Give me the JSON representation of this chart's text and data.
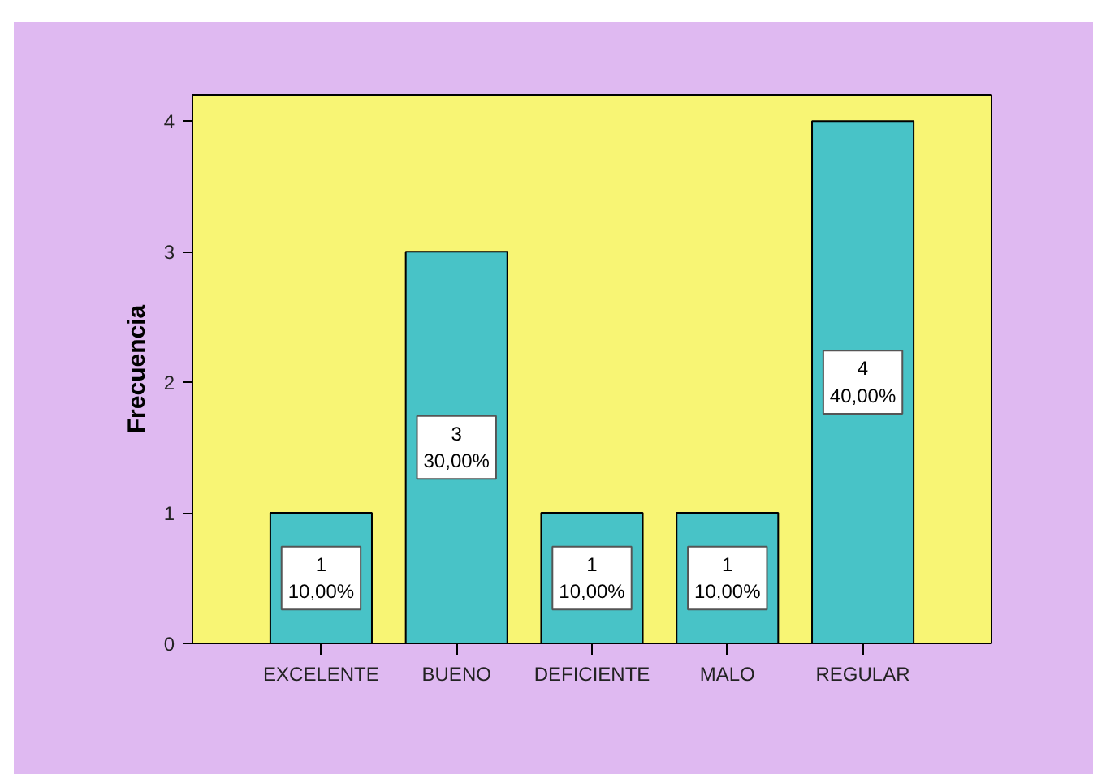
{
  "chart_data": {
    "type": "bar",
    "ylabel": "Frecuencia",
    "categories": [
      "EXCELENTE",
      "BUENO",
      "DEFICIENTE",
      "MALO",
      "REGULAR"
    ],
    "values": [
      1,
      3,
      1,
      1,
      4
    ],
    "color": "#48c3c7",
    "value_labels": [
      "1\n10,00%",
      "3\n30,00%",
      "1\n10,00%",
      "1\n10,00%",
      "4\n40,00%"
    ],
    "ylim": [
      0,
      4.2
    ],
    "yticks": [
      0,
      1,
      2,
      3,
      4
    ]
  }
}
